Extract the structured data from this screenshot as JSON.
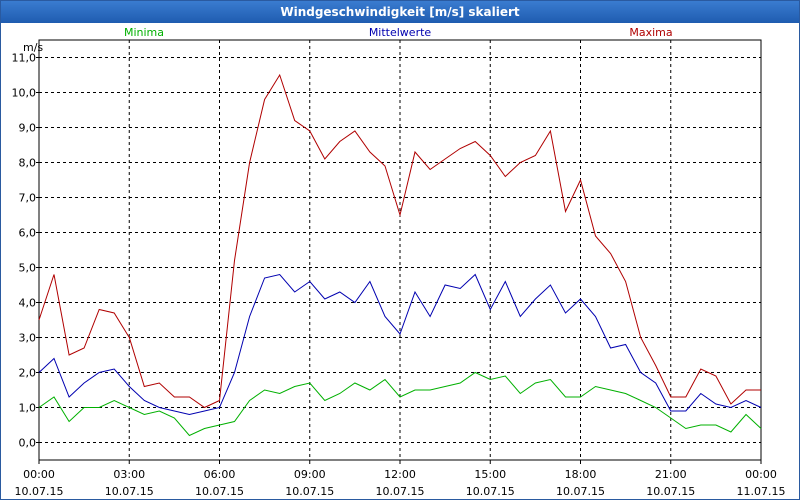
{
  "chart_data": {
    "type": "line",
    "title": "Windgeschwindigkeit [m/s] skaliert",
    "ylabel": "m/s",
    "xlabel": "",
    "ylim": [
      -0.5,
      11.5
    ],
    "y_ticks": [
      "0,0",
      "1,0",
      "2,0",
      "3,0",
      "4,0",
      "5,0",
      "6,0",
      "7,0",
      "8,0",
      "9,0",
      "10,0",
      "11,0"
    ],
    "y_tick_values": [
      0,
      1,
      2,
      3,
      4,
      5,
      6,
      7,
      8,
      9,
      10,
      11
    ],
    "xlim": [
      0,
      24
    ],
    "x_ticks": [
      {
        "hour": 0,
        "time": "00:00",
        "date": "10.07.15"
      },
      {
        "hour": 3,
        "time": "03:00",
        "date": "10.07.15"
      },
      {
        "hour": 6,
        "time": "06:00",
        "date": "10.07.15"
      },
      {
        "hour": 9,
        "time": "09:00",
        "date": "10.07.15"
      },
      {
        "hour": 12,
        "time": "12:00",
        "date": "10.07.15"
      },
      {
        "hour": 15,
        "time": "15:00",
        "date": "10.07.15"
      },
      {
        "hour": 18,
        "time": "18:00",
        "date": "10.07.15"
      },
      {
        "hour": 21,
        "time": "21:00",
        "date": "10.07.15"
      },
      {
        "hour": 24,
        "time": "00:00",
        "date": "11.07.15"
      }
    ],
    "grid": true,
    "series": [
      {
        "name": "Minima",
        "color": "#00b000",
        "x": [
          0,
          0.5,
          1,
          1.5,
          2,
          2.5,
          3,
          3.5,
          4,
          4.5,
          5,
          5.5,
          6,
          6.5,
          7,
          7.5,
          8,
          8.5,
          9,
          9.5,
          10,
          10.5,
          11,
          11.5,
          12,
          12.5,
          13,
          13.5,
          14,
          14.5,
          15,
          15.5,
          16,
          16.5,
          17,
          17.5,
          18,
          18.5,
          19,
          19.5,
          20,
          20.5,
          21,
          21.5,
          22,
          22.5,
          23,
          23.5,
          24
        ],
        "values": [
          1.0,
          1.3,
          0.6,
          1.0,
          1.0,
          1.2,
          1.0,
          0.8,
          0.9,
          0.7,
          0.2,
          0.4,
          0.5,
          0.6,
          1.2,
          1.5,
          1.4,
          1.6,
          1.7,
          1.2,
          1.4,
          1.7,
          1.5,
          1.8,
          1.3,
          1.5,
          1.5,
          1.6,
          1.7,
          2.0,
          1.8,
          1.9,
          1.4,
          1.7,
          1.8,
          1.3,
          1.3,
          1.6,
          1.5,
          1.4,
          1.2,
          1.0,
          0.7,
          0.4,
          0.5,
          0.5,
          0.3,
          0.8,
          0.4
        ]
      },
      {
        "name": "Mittelwerte",
        "color": "#0000b0",
        "x": [
          0,
          0.5,
          1,
          1.5,
          2,
          2.5,
          3,
          3.5,
          4,
          4.5,
          5,
          5.5,
          6,
          6.5,
          7,
          7.5,
          8,
          8.5,
          9,
          9.5,
          10,
          10.5,
          11,
          11.5,
          12,
          12.5,
          13,
          13.5,
          14,
          14.5,
          15,
          15.5,
          16,
          16.5,
          17,
          17.5,
          18,
          18.5,
          19,
          19.5,
          20,
          20.5,
          21,
          21.5,
          22,
          22.5,
          23,
          23.5,
          24
        ],
        "values": [
          2.0,
          2.4,
          1.3,
          1.7,
          2.0,
          2.1,
          1.6,
          1.2,
          1.0,
          0.9,
          0.8,
          0.9,
          1.0,
          2.0,
          3.6,
          4.7,
          4.8,
          4.3,
          4.6,
          4.1,
          4.3,
          4.0,
          4.6,
          3.6,
          3.1,
          4.3,
          3.6,
          4.5,
          4.4,
          4.8,
          3.8,
          4.6,
          3.6,
          4.1,
          4.5,
          3.7,
          4.1,
          3.6,
          2.7,
          2.8,
          2.0,
          1.7,
          0.9,
          0.9,
          1.4,
          1.1,
          1.0,
          1.2,
          1.0
        ]
      },
      {
        "name": "Maxima",
        "color": "#b00000",
        "x": [
          0,
          0.5,
          1,
          1.5,
          2,
          2.5,
          3,
          3.5,
          4,
          4.5,
          5,
          5.5,
          6,
          6.5,
          7,
          7.5,
          8,
          8.5,
          9,
          9.5,
          10,
          10.5,
          11,
          11.5,
          12,
          12.5,
          13,
          13.5,
          14,
          14.5,
          15,
          15.5,
          16,
          16.5,
          17,
          17.5,
          18,
          18.5,
          19,
          19.5,
          20,
          20.5,
          21,
          21.5,
          22,
          22.5,
          23,
          23.5,
          24
        ],
        "values": [
          3.5,
          4.8,
          2.5,
          2.7,
          3.8,
          3.7,
          3.0,
          1.6,
          1.7,
          1.3,
          1.3,
          1.0,
          1.2,
          5.2,
          8.0,
          9.8,
          10.5,
          9.2,
          8.9,
          8.1,
          8.6,
          8.9,
          8.3,
          7.9,
          6.5,
          8.3,
          7.8,
          8.1,
          8.4,
          8.6,
          8.2,
          7.6,
          8.0,
          8.2,
          8.9,
          6.6,
          7.5,
          5.9,
          5.4,
          4.6,
          3.0,
          2.2,
          1.3,
          1.3,
          2.1,
          1.9,
          1.1,
          1.5,
          1.5
        ]
      }
    ]
  }
}
